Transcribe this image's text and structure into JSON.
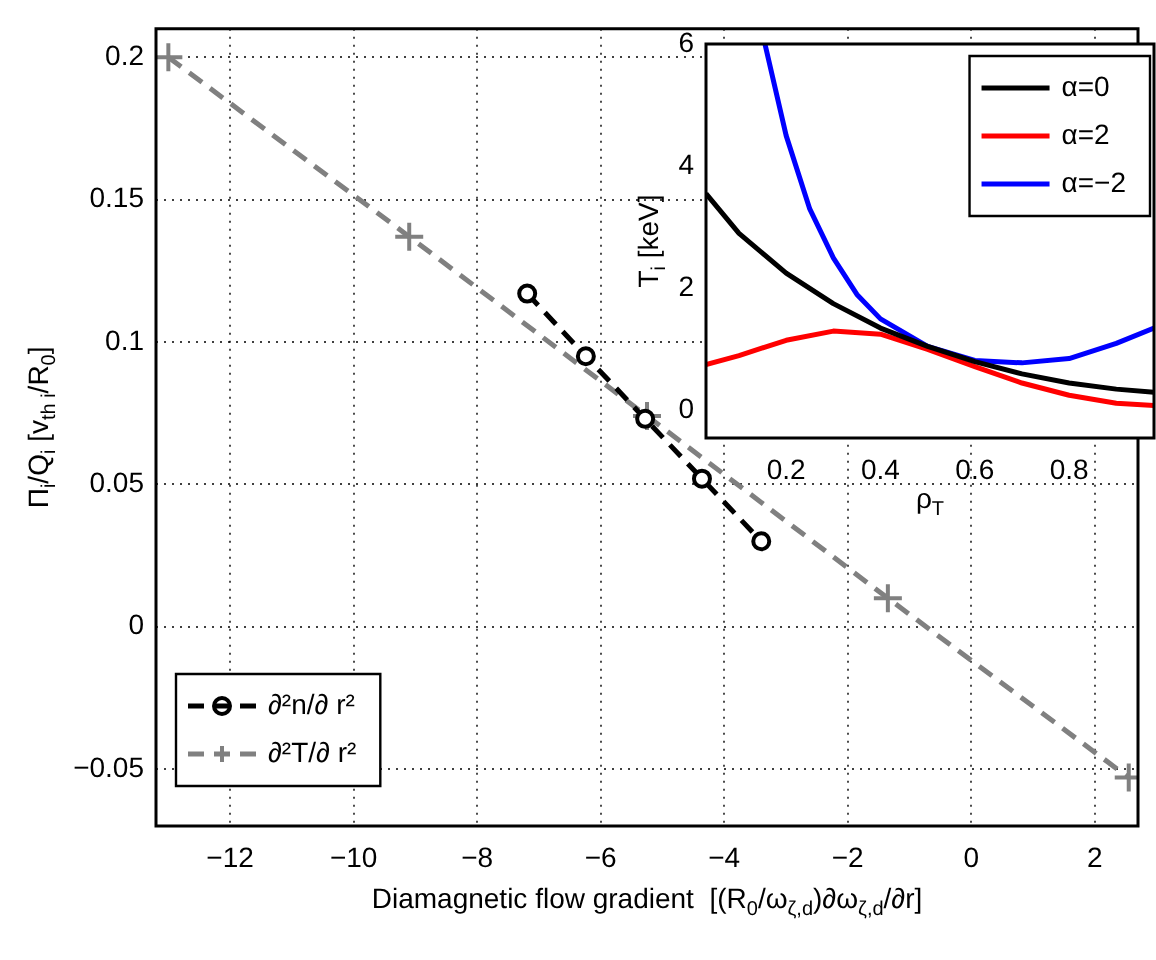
{
  "chart_data": [
    {
      "type": "line",
      "xlabel": "Diamagnetic flow gradient  [(R$_{0}$/ω$_{ζ,d}$)∂ω$_{ζ,d}$/∂r]",
      "ylabel": "Π$_{i}$/Q$_{i}$ [v$_{th i}$/R$_{0}$]",
      "xlim": [
        -13.2,
        2.7
      ],
      "ylim": [
        -0.07,
        0.21
      ],
      "xticks": [
        -12,
        -10,
        -8,
        -6,
        -4,
        -2,
        0,
        2
      ],
      "yticks": [
        -0.05,
        0,
        0.05,
        0.1,
        0.15,
        0.2
      ],
      "grid": true,
      "legend": "bottom left",
      "series": [
        {
          "name": "∂²n/∂ r²",
          "color": "#000000",
          "marker": "circle",
          "line_style": "dashed",
          "x": [
            -7.19,
            -6.24,
            -5.28,
            -4.36,
            -3.4
          ],
          "values": [
            0.117,
            0.095,
            0.073,
            0.052,
            0.03
          ]
        },
        {
          "name": "∂²T/∂ r²",
          "color": "#808080",
          "marker": "cross",
          "line_style": "dashed",
          "x": [
            -13,
            -9.1,
            -5.25,
            -1.35,
            2.55
          ],
          "values": [
            0.2,
            0.137,
            0.074,
            0.01,
            -0.053
          ]
        }
      ]
    },
    {
      "type": "line",
      "xlabel": "ρ$_{T}$",
      "ylabel": "T$_{i}$ [keV]",
      "xlim": [
        0.03,
        0.98
      ],
      "ylim": [
        -0.45,
        6
      ],
      "xticks": [
        0.2,
        0.4,
        0.6,
        0.8
      ],
      "yticks": [
        0,
        2,
        4,
        6
      ],
      "legend": "top right",
      "series": [
        {
          "name": "α=0",
          "color": "#000000",
          "x": [
            0.03,
            0.1,
            0.2,
            0.3,
            0.4,
            0.5,
            0.6,
            0.7,
            0.8,
            0.9,
            0.98
          ],
          "values": [
            3.55,
            2.9,
            2.25,
            1.75,
            1.35,
            1.05,
            0.8,
            0.6,
            0.45,
            0.35,
            0.3
          ]
        },
        {
          "name": "α=2",
          "color": "#ff0000",
          "x": [
            0.03,
            0.1,
            0.2,
            0.3,
            0.4,
            0.5,
            0.6,
            0.7,
            0.8,
            0.9,
            0.98
          ],
          "values": [
            0.75,
            0.9,
            1.15,
            1.3,
            1.25,
            1.0,
            0.72,
            0.45,
            0.25,
            0.12,
            0.08
          ]
        },
        {
          "name": "α=−2",
          "color": "#0000ff",
          "x": [
            0.155,
            0.2,
            0.25,
            0.3,
            0.35,
            0.4,
            0.5,
            0.6,
            0.7,
            0.8,
            0.9,
            0.98
          ],
          "values": [
            6,
            4.5,
            3.3,
            2.5,
            1.9,
            1.5,
            1.05,
            0.82,
            0.78,
            0.85,
            1.1,
            1.35
          ]
        }
      ]
    }
  ]
}
